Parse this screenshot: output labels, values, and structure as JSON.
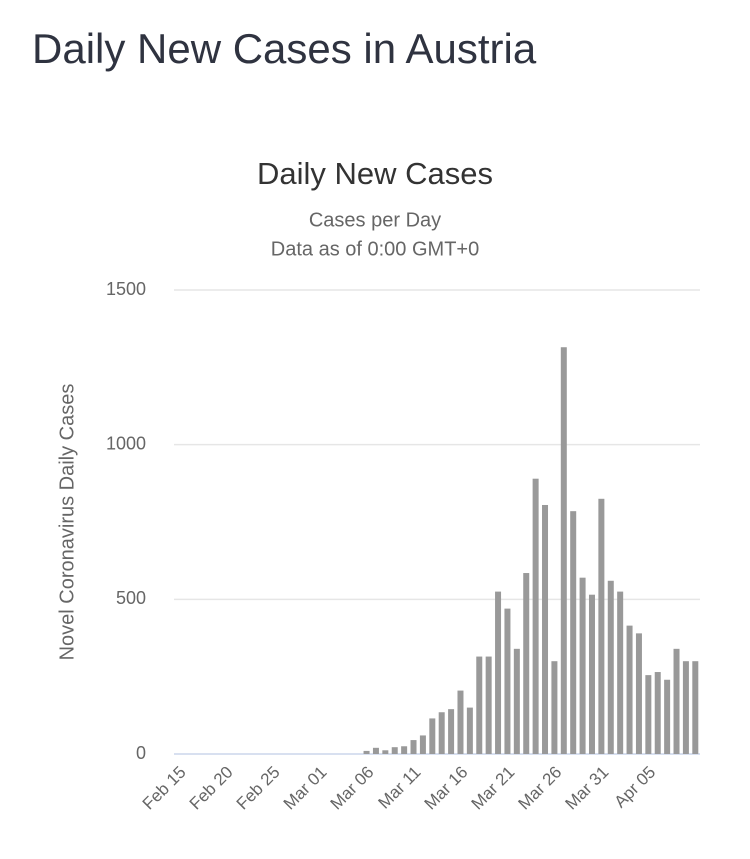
{
  "header": {
    "title": "Daily New Cases in Austria"
  },
  "chart_data": {
    "type": "bar",
    "title": "Daily New Cases",
    "subtitle": [
      "Cases per Day",
      "Data as of 0:00 GMT+0"
    ],
    "y_label": "Novel Coronavirus Daily Cases",
    "categories": [
      "Feb 15",
      null,
      null,
      null,
      null,
      "Feb 20",
      null,
      null,
      null,
      null,
      "Feb 25",
      null,
      null,
      null,
      null,
      "Mar 01",
      null,
      null,
      null,
      null,
      "Mar 06",
      null,
      null,
      null,
      null,
      "Mar 11",
      null,
      null,
      null,
      null,
      "Mar 16",
      null,
      null,
      null,
      null,
      "Mar 21",
      null,
      null,
      null,
      null,
      "Mar 26",
      null,
      null,
      null,
      null,
      "Mar 31",
      null,
      null,
      null,
      null,
      "Apr 05",
      null,
      null,
      null,
      null,
      null
    ],
    "values": [
      0,
      0,
      0,
      0,
      0,
      0,
      0,
      0,
      0,
      0,
      0,
      0,
      0,
      0,
      0,
      0,
      0,
      0,
      0,
      0,
      10,
      20,
      12,
      22,
      25,
      45,
      60,
      115,
      135,
      145,
      205,
      150,
      315,
      315,
      525,
      470,
      340,
      585,
      890,
      805,
      300,
      1315,
      785,
      570,
      515,
      825,
      560,
      525,
      415,
      390,
      255,
      265,
      240,
      340,
      300,
      300
    ],
    "color": "#999999",
    "ylim": [
      0,
      1500
    ],
    "yticks": [
      0,
      500,
      1000,
      1500
    ],
    "grid": true
  }
}
